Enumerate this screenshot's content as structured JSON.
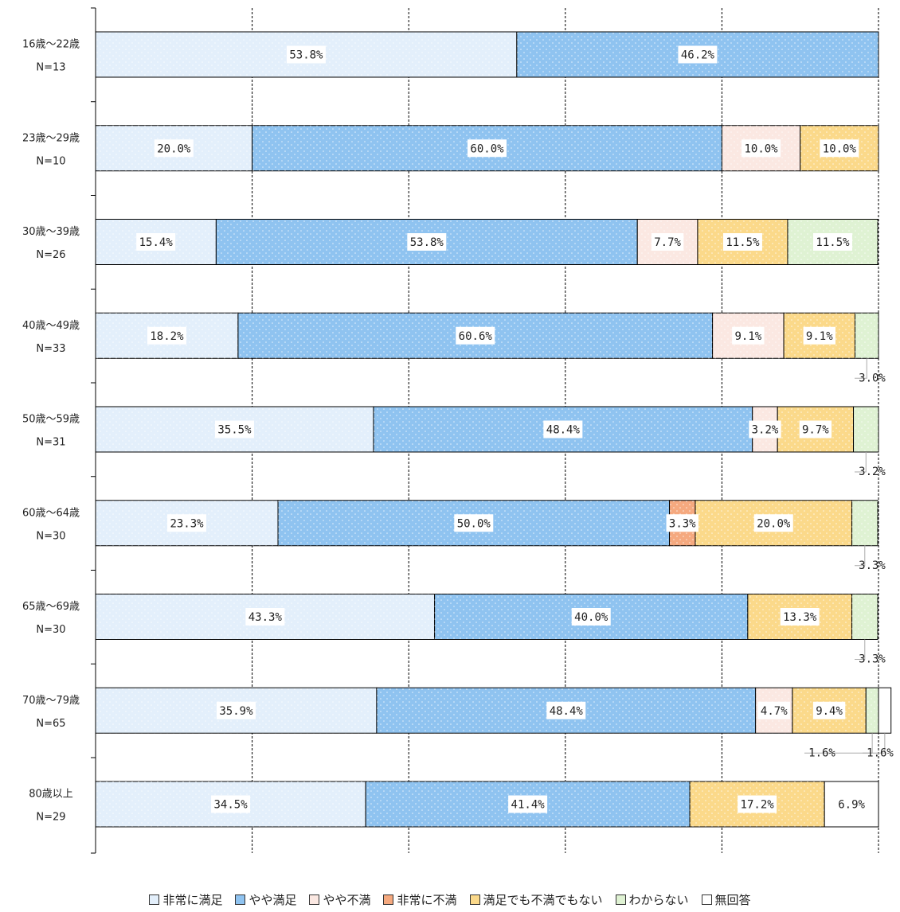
{
  "chart_data": {
    "type": "bar",
    "orientation": "horizontal",
    "stacked": true,
    "xlim": [
      0,
      100
    ],
    "grid": true,
    "legend_position": "bottom",
    "categories": [
      {
        "name": "16歳～22歳",
        "n": "N=13"
      },
      {
        "name": "23歳～29歳",
        "n": "N=10"
      },
      {
        "name": "30歳～39歳",
        "n": "N=26"
      },
      {
        "name": "40歳～49歳",
        "n": "N=33"
      },
      {
        "name": "50歳～59歳",
        "n": "N=31"
      },
      {
        "name": "60歳～64歳",
        "n": "N=30"
      },
      {
        "name": "65歳～69歳",
        "n": "N=30"
      },
      {
        "name": "70歳～79歳",
        "n": "N=65"
      },
      {
        "name": "80歳以上",
        "n": "N=29"
      }
    ],
    "series": [
      {
        "name": "非常に満足",
        "color": "#e3effb",
        "values": [
          53.8,
          20.0,
          15.4,
          18.2,
          35.5,
          23.3,
          43.3,
          35.9,
          34.5
        ]
      },
      {
        "name": "やや満足",
        "color": "#8fc3f0",
        "values": [
          46.2,
          60.0,
          53.8,
          60.6,
          48.4,
          50.0,
          40.0,
          48.4,
          41.4
        ]
      },
      {
        "name": "やや不満",
        "color": "#fbe8e2",
        "values": [
          0,
          10.0,
          7.7,
          9.1,
          3.2,
          0,
          0,
          4.7,
          0
        ]
      },
      {
        "name": "非常に不満",
        "color": "#f5a97f",
        "values": [
          0,
          0,
          0,
          0,
          0,
          3.3,
          0,
          0,
          0
        ]
      },
      {
        "name": "満足でも不満でもない",
        "color": "#fbd98a",
        "values": [
          0,
          10.0,
          11.5,
          9.1,
          9.7,
          20.0,
          13.3,
          9.4,
          17.2
        ]
      },
      {
        "name": "わからない",
        "color": "#dff2d3",
        "values": [
          0,
          0,
          11.5,
          3.0,
          3.2,
          3.3,
          3.3,
          1.6,
          0
        ]
      },
      {
        "name": "無回答",
        "color": "#ffffff",
        "values": [
          0,
          0,
          0,
          0,
          0,
          0,
          0,
          1.6,
          6.9
        ]
      }
    ],
    "data_labels": [
      [
        {
          "series": 0,
          "text": "53.8%"
        },
        {
          "series": 1,
          "text": "46.2%"
        }
      ],
      [
        {
          "series": 0,
          "text": "20.0%"
        },
        {
          "series": 1,
          "text": "60.0%"
        },
        {
          "series": 2,
          "text": "10.0%"
        },
        {
          "series": 4,
          "text": "10.0%"
        }
      ],
      [
        {
          "series": 0,
          "text": "15.4%"
        },
        {
          "series": 1,
          "text": "53.8%"
        },
        {
          "series": 2,
          "text": "7.7%"
        },
        {
          "series": 4,
          "text": "11.5%"
        },
        {
          "series": 5,
          "text": "11.5%"
        }
      ],
      [
        {
          "series": 0,
          "text": "18.2%"
        },
        {
          "series": 1,
          "text": "60.6%"
        },
        {
          "series": 2,
          "text": "9.1%"
        },
        {
          "series": 4,
          "text": "9.1%"
        },
        {
          "series": 5,
          "text": "3.0%",
          "outside": "below"
        }
      ],
      [
        {
          "series": 0,
          "text": "35.5%"
        },
        {
          "series": 1,
          "text": "48.4%"
        },
        {
          "series": 2,
          "text": "3.2%"
        },
        {
          "series": 4,
          "text": "9.7%"
        },
        {
          "series": 5,
          "text": "3.2%",
          "outside": "below"
        }
      ],
      [
        {
          "series": 0,
          "text": "23.3%"
        },
        {
          "series": 1,
          "text": "50.0%"
        },
        {
          "series": 3,
          "text": "3.3%"
        },
        {
          "series": 4,
          "text": "20.0%"
        },
        {
          "series": 5,
          "text": "3.3%",
          "outside": "below"
        }
      ],
      [
        {
          "series": 0,
          "text": "43.3%"
        },
        {
          "series": 1,
          "text": "40.0%"
        },
        {
          "series": 4,
          "text": "13.3%"
        },
        {
          "series": 5,
          "text": "3.3%",
          "outside": "below"
        }
      ],
      [
        {
          "series": 0,
          "text": "35.9%"
        },
        {
          "series": 1,
          "text": "48.4%"
        },
        {
          "series": 2,
          "text": "4.7%"
        },
        {
          "series": 4,
          "text": "9.4%"
        },
        {
          "series": 5,
          "text": "1.6%",
          "outside": "below-left"
        },
        {
          "series": 6,
          "text": "1.6%",
          "outside": "below-right"
        }
      ],
      [
        {
          "series": 0,
          "text": "34.5%"
        },
        {
          "series": 1,
          "text": "41.4%"
        },
        {
          "series": 4,
          "text": "17.2%"
        },
        {
          "series": 6,
          "text": "6.9%"
        }
      ]
    ]
  }
}
